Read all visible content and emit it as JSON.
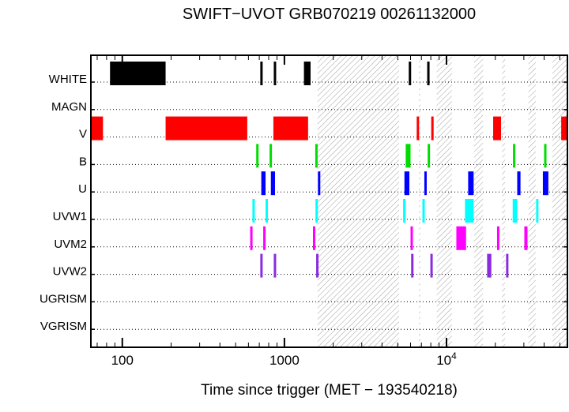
{
  "chart_data": {
    "type": "timeline",
    "title": "SWIFT−UVOT GRB070219 00261132000",
    "xlabel": "Time since trigger (MET − 193540218)",
    "x_scale": "log",
    "xlim": [
      64,
      55700
    ],
    "x_ticks": [
      100,
      1000,
      10000
    ],
    "x_tick_labels": [
      "100",
      "1000",
      "10⁴"
    ],
    "x_minor_ticks_per_decade": [
      2,
      3,
      4,
      5,
      6,
      7,
      8,
      9
    ],
    "frame_color": "#000000",
    "rows": [
      {
        "label": "WHITE",
        "color": "#000000",
        "intervals": [
          [
            84,
            185
          ],
          [
            710,
            725
          ],
          [
            860,
            875
          ],
          [
            1320,
            1450
          ],
          [
            5850,
            5980
          ],
          [
            7600,
            7750
          ]
        ]
      },
      {
        "label": "MAGN",
        "color": "#000000",
        "intervals": []
      },
      {
        "label": "V",
        "color": "#ff0000",
        "intervals": [
          [
            64,
            76
          ],
          [
            185,
            590
          ],
          [
            855,
            1400
          ],
          [
            6550,
            6700
          ],
          [
            8050,
            8200
          ],
          [
            19400,
            21700
          ],
          [
            51000,
            55700
          ]
        ]
      },
      {
        "label": "B",
        "color": "#00dd00",
        "intervals": [
          [
            670,
            690
          ],
          [
            810,
            830
          ],
          [
            1550,
            1590
          ],
          [
            5600,
            6000
          ],
          [
            7650,
            7800
          ],
          [
            25700,
            26300
          ],
          [
            40000,
            41200
          ]
        ]
      },
      {
        "label": "U",
        "color": "#0000ff",
        "intervals": [
          [
            720,
            765
          ],
          [
            825,
            875
          ],
          [
            1610,
            1650
          ],
          [
            5500,
            5900
          ],
          [
            7300,
            7550
          ],
          [
            13600,
            14700
          ],
          [
            27300,
            28600
          ],
          [
            39300,
            42500
          ]
        ]
      },
      {
        "label": "UVW1",
        "color": "#00ffff",
        "intervals": [
          [
            635,
            655
          ],
          [
            765,
            785
          ],
          [
            1555,
            1590
          ],
          [
            5400,
            5550
          ],
          [
            7100,
            7250
          ],
          [
            13000,
            14700
          ],
          [
            25600,
            27300
          ],
          [
            35700,
            36500
          ]
        ]
      },
      {
        "label": "UVM2",
        "color": "#ff00ff",
        "intervals": [
          [
            615,
            635
          ],
          [
            740,
            760
          ],
          [
            1500,
            1540
          ],
          [
            6000,
            6150
          ],
          [
            11500,
            13200
          ],
          [
            20500,
            21000
          ],
          [
            30200,
            31600
          ]
        ]
      },
      {
        "label": "UVW2",
        "color": "#8a2be2",
        "intervals": [
          [
            710,
            730
          ],
          [
            860,
            880
          ],
          [
            1570,
            1620
          ],
          [
            6050,
            6200
          ],
          [
            7950,
            8100
          ],
          [
            17800,
            18900
          ],
          [
            23300,
            24100
          ]
        ]
      },
      {
        "label": "UGRISM",
        "color": "#000000",
        "intervals": []
      },
      {
        "label": "VGRISM",
        "color": "#000000",
        "intervals": []
      }
    ],
    "hatch": {
      "region": [
        1600,
        55700
      ],
      "gaps": [
        [
          5100,
          6750
        ],
        [
          6900,
          8700
        ],
        [
          10800,
          14800
        ],
        [
          16800,
          22000
        ],
        [
          23000,
          32000
        ],
        [
          35500,
          45000
        ]
      ]
    }
  }
}
